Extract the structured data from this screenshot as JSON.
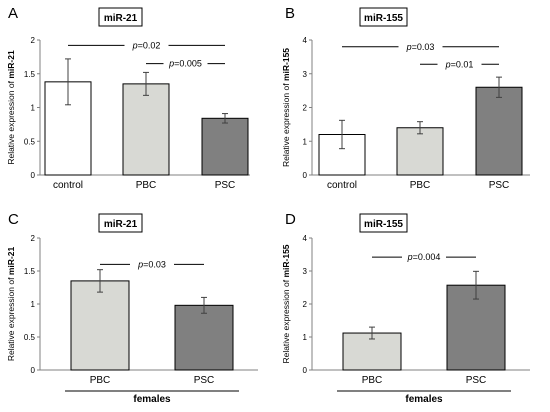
{
  "chart_data": [
    {
      "type": "bar",
      "panel": "A",
      "title": "miR-21",
      "ylabel_prefix": "Relative expression of ",
      "ylabel_strong": "miR-21",
      "categories": [
        "control",
        "PBC",
        "PSC"
      ],
      "values": [
        1.38,
        1.35,
        0.84
      ],
      "errors": [
        0.34,
        0.17,
        0.07
      ],
      "bar_colors": [
        "#ffffff",
        "#d8d9d4",
        "#808080"
      ],
      "ylim": [
        0,
        2
      ],
      "yticks": [
        "0",
        "0.5",
        "1",
        "1.5",
        "2"
      ],
      "tick_values": [
        0,
        0.5,
        1,
        1.5,
        2
      ],
      "group_label": "",
      "significance": [
        {
          "from": 0,
          "to": 2,
          "y": 1.92,
          "label": "0.02"
        },
        {
          "from": 1,
          "to": 2,
          "y": 1.65,
          "label": "0.005"
        }
      ]
    },
    {
      "type": "bar",
      "panel": "B",
      "title": "miR-155",
      "ylabel_prefix": "Relative expression of ",
      "ylabel_strong": "miR-155",
      "categories": [
        "control",
        "PBC",
        "PSC"
      ],
      "values": [
        1.2,
        1.4,
        2.6
      ],
      "errors": [
        0.42,
        0.18,
        0.3
      ],
      "bar_colors": [
        "#ffffff",
        "#d8d9d4",
        "#808080"
      ],
      "ylim": [
        0,
        4
      ],
      "yticks": [
        "0",
        "1",
        "2",
        "3",
        "4"
      ],
      "tick_values": [
        0,
        1,
        2,
        3,
        4
      ],
      "group_label": "",
      "significance": [
        {
          "from": 0,
          "to": 2,
          "y": 3.8,
          "label": "0.03"
        },
        {
          "from": 1,
          "to": 2,
          "y": 3.28,
          "label": "0.01"
        }
      ]
    },
    {
      "type": "bar",
      "panel": "C",
      "title": "miR-21",
      "ylabel_prefix": "Relative expression of ",
      "ylabel_strong": "miR-21",
      "categories": [
        "PBC",
        "PSC"
      ],
      "values": [
        1.35,
        0.98
      ],
      "errors": [
        0.17,
        0.12
      ],
      "bar_colors": [
        "#d8d9d4",
        "#808080"
      ],
      "ylim": [
        0,
        2
      ],
      "yticks": [
        "0",
        "0.5",
        "1",
        "1.5",
        "2"
      ],
      "tick_values": [
        0,
        0.5,
        1,
        1.5,
        2
      ],
      "group_label": "females",
      "significance": [
        {
          "from": 0,
          "to": 1,
          "y": 1.6,
          "label": "0.03"
        }
      ]
    },
    {
      "type": "bar",
      "panel": "D",
      "title": "miR-155",
      "ylabel_prefix": "Relative expression of ",
      "ylabel_strong": "miR-155",
      "categories": [
        "PBC",
        "PSC"
      ],
      "values": [
        1.12,
        2.57
      ],
      "errors": [
        0.18,
        0.42
      ],
      "bar_colors": [
        "#d8d9d4",
        "#808080"
      ],
      "ylim": [
        0,
        4
      ],
      "yticks": [
        "0",
        "1",
        "2",
        "3",
        "4"
      ],
      "tick_values": [
        0,
        1,
        2,
        3,
        4
      ],
      "group_label": "females",
      "significance": [
        {
          "from": 0,
          "to": 1,
          "y": 3.42,
          "label": "0.004"
        }
      ]
    }
  ],
  "p_prefix": "p",
  "p_equals": "=",
  "colors": {
    "axis": "#808080",
    "bar_stroke": "#000000",
    "error": "#404040",
    "line": "#000000"
  }
}
